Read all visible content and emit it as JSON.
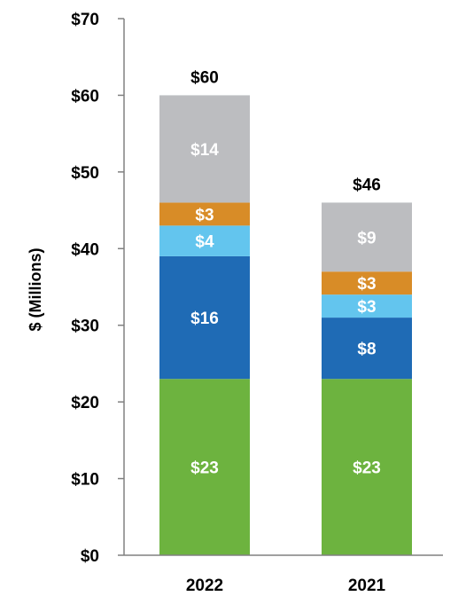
{
  "chart_data": {
    "type": "bar",
    "stacked": true,
    "ylabel": "$ (Millions)",
    "ylim": [
      0,
      70
    ],
    "yticks": [
      "$0",
      "$10",
      "$20",
      "$30",
      "$40",
      "$50",
      "$60",
      "$70"
    ],
    "ytick_values": [
      0,
      10,
      20,
      30,
      40,
      50,
      60,
      70
    ],
    "categories": [
      "2022",
      "2021"
    ],
    "series": [
      {
        "color": "#6db33f",
        "values": [
          23,
          23
        ],
        "labels": [
          "$23",
          "$23"
        ]
      },
      {
        "color": "#1f6bb5",
        "values": [
          16,
          8
        ],
        "labels": [
          "$16",
          "$8"
        ]
      },
      {
        "color": "#63c5ee",
        "values": [
          4,
          3
        ],
        "labels": [
          "$4",
          "$3"
        ]
      },
      {
        "color": "#d88c27",
        "values": [
          3,
          3
        ],
        "labels": [
          "$3",
          "$3"
        ]
      },
      {
        "color": "#bcbdc0",
        "values": [
          14,
          9
        ],
        "labels": [
          "$14",
          "$9"
        ]
      }
    ],
    "totals": [
      60,
      46
    ],
    "total_labels": [
      "$60",
      "$46"
    ],
    "grid": false,
    "legend": "none"
  }
}
